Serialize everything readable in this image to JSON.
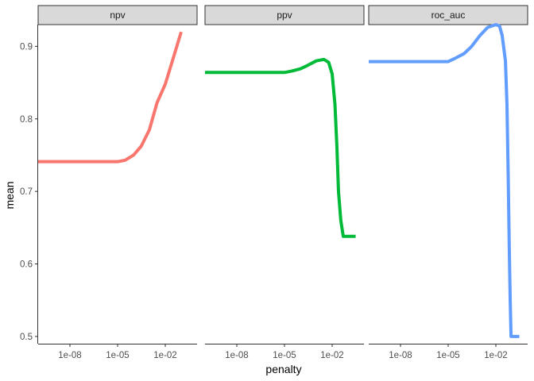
{
  "chart_data": {
    "type": "line",
    "facet_by": "metric",
    "xlabel": "penalty",
    "ylabel": "mean",
    "x_scale": "log10",
    "xlim": [
      1e-10,
      1
    ],
    "ylim": [
      0.49,
      0.93
    ],
    "x_ticks": [
      {
        "value": 1e-08,
        "label": "1e-08"
      },
      {
        "value": 1e-05,
        "label": "1e-05"
      },
      {
        "value": 0.01,
        "label": "1e-02"
      }
    ],
    "y_ticks": [
      {
        "value": 0.5,
        "label": "0.5"
      },
      {
        "value": 0.6,
        "label": "0.6"
      },
      {
        "value": 0.7,
        "label": "0.7"
      },
      {
        "value": 0.8,
        "label": "0.8"
      },
      {
        "value": 0.9,
        "label": "0.9"
      }
    ],
    "grid": false,
    "legend": "none",
    "panels": [
      {
        "name": "npv",
        "color": "#F8766D",
        "points": [
          [
            1e-10,
            0.741
          ],
          [
            1e-09,
            0.741
          ],
          [
            1e-08,
            0.741
          ],
          [
            1e-07,
            0.741
          ],
          [
            1e-06,
            0.741
          ],
          [
            1e-05,
            0.741
          ],
          [
            3e-05,
            0.743
          ],
          [
            0.0001,
            0.75
          ],
          [
            0.0003,
            0.762
          ],
          [
            0.001,
            0.785
          ],
          [
            0.003,
            0.822
          ],
          [
            0.01,
            0.848
          ],
          [
            0.03,
            0.882
          ],
          [
            0.1,
            0.92
          ]
        ]
      },
      {
        "name": "ppv",
        "color": "#00BA38",
        "points": [
          [
            1e-10,
            0.864
          ],
          [
            1e-08,
            0.864
          ],
          [
            1e-06,
            0.864
          ],
          [
            1e-05,
            0.864
          ],
          [
            3e-05,
            0.866
          ],
          [
            0.0001,
            0.869
          ],
          [
            0.0003,
            0.874
          ],
          [
            0.001,
            0.88
          ],
          [
            0.003,
            0.882
          ],
          [
            0.006,
            0.878
          ],
          [
            0.01,
            0.862
          ],
          [
            0.015,
            0.82
          ],
          [
            0.02,
            0.76
          ],
          [
            0.025,
            0.7
          ],
          [
            0.035,
            0.66
          ],
          [
            0.05,
            0.638
          ],
          [
            0.1,
            0.638
          ],
          [
            0.3,
            0.638
          ]
        ]
      },
      {
        "name": "roc_auc",
        "color": "#619CFF",
        "points": [
          [
            1e-10,
            0.879
          ],
          [
            1e-08,
            0.879
          ],
          [
            1e-06,
            0.879
          ],
          [
            1e-05,
            0.879
          ],
          [
            3e-05,
            0.884
          ],
          [
            0.0001,
            0.89
          ],
          [
            0.0003,
            0.9
          ],
          [
            0.001,
            0.915
          ],
          [
            0.003,
            0.926
          ],
          [
            0.01,
            0.93
          ],
          [
            0.017,
            0.928
          ],
          [
            0.025,
            0.915
          ],
          [
            0.04,
            0.88
          ],
          [
            0.05,
            0.82
          ],
          [
            0.06,
            0.72
          ],
          [
            0.07,
            0.62
          ],
          [
            0.08,
            0.55
          ],
          [
            0.09,
            0.5
          ],
          [
            0.3,
            0.5
          ]
        ]
      }
    ]
  }
}
